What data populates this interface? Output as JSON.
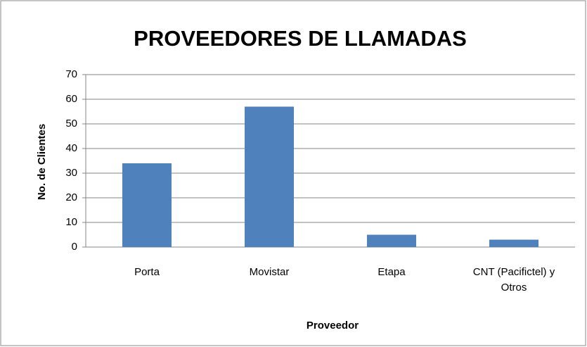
{
  "chart_data": {
    "type": "bar",
    "title": "PROVEEDORES DE LLAMADAS",
    "y_label": "No. de Clientes",
    "x_label": "Proveedor",
    "categories": [
      "Porta",
      "Movistar",
      "Etapa",
      "CNT (Pacifictel)  y Otros"
    ],
    "values": [
      34,
      57,
      5,
      3
    ],
    "color": "#4f81bd",
    "ylim": [
      0,
      70
    ],
    "yticks": [
      0,
      10,
      20,
      30,
      40,
      50,
      60,
      70
    ],
    "grid": true
  }
}
